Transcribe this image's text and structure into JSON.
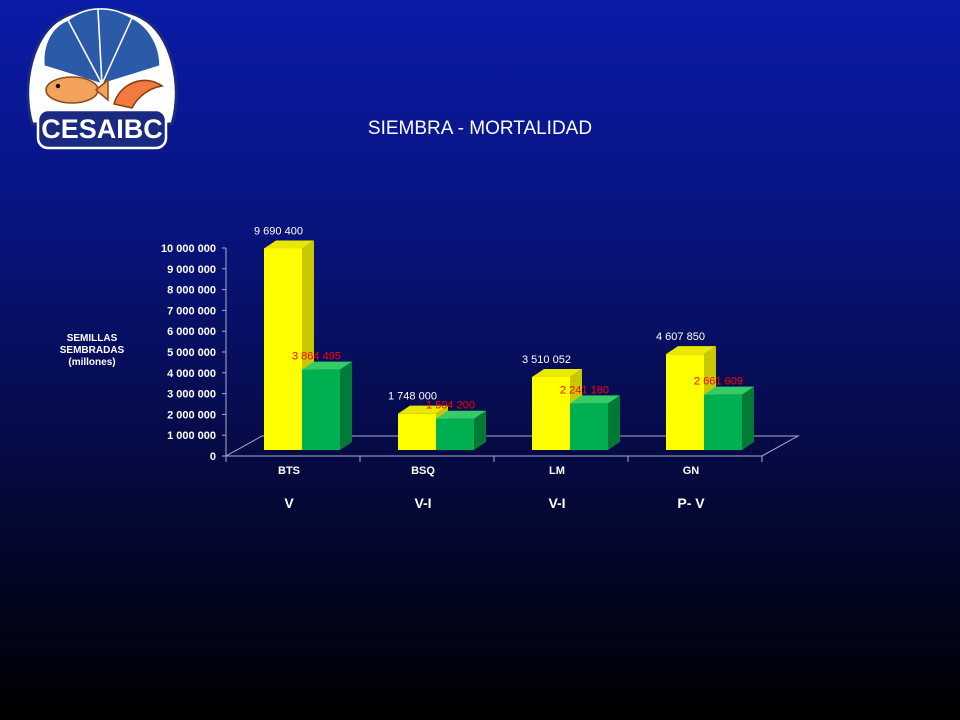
{
  "logo": {
    "text": "CESAIBC",
    "icon": "shell-fish-shrimp-logo"
  },
  "title": "SIEMBRA - MORTALIDAD",
  "colors": {
    "seeded": "#ffff00",
    "second": "#00b050",
    "second_label": "#ff0000"
  },
  "chart_data": {
    "type": "bar",
    "title": "SIEMBRA - MORTALIDAD",
    "ylabel": "SEMILLAS SEMBRADAS (millones)",
    "xlabel": "",
    "ylim": [
      0,
      10000000
    ],
    "yticks": [
      "0",
      "1 000 000",
      "2 000 000",
      "3 000 000",
      "4 000 000",
      "5 000 000",
      "6 000 000",
      "7 000 000",
      "8 000 000",
      "9 000 000",
      "10 000 000"
    ],
    "categories": [
      "BTS",
      "BSQ",
      "LM",
      "GN"
    ],
    "category_sublabels": [
      "V",
      "V-I",
      "V-I",
      "P- V"
    ],
    "series": [
      {
        "values": [
          9690400,
          1748000,
          3510052,
          4607850
        ],
        "labels": [
          "9 690 400",
          "1 748 000",
          "3 510 052",
          "4 607 850"
        ]
      },
      {
        "values": [
          3864495,
          1504200,
          2241180,
          2661609
        ],
        "labels": [
          "3 864 495",
          "1 504 200",
          "2 241 180",
          "2 661 609"
        ]
      }
    ],
    "grid": false,
    "legend": "none"
  }
}
